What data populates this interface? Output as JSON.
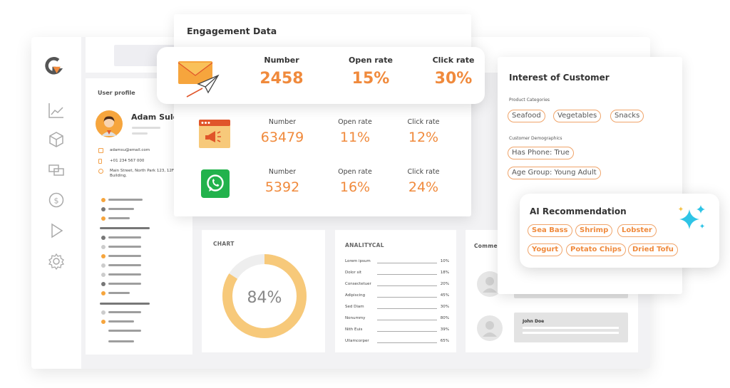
{
  "colors": {
    "accent": "#f08a3c",
    "tag_border": "#f0a46a",
    "donut": "#f7c97a",
    "whatsapp": "#22b24c"
  },
  "sidebar": {
    "icons": [
      "logo-icon",
      "chart-line-icon",
      "cube-icon",
      "screens-icon",
      "dollar-icon",
      "play-icon",
      "gear-icon"
    ]
  },
  "profile": {
    "title": "User profile",
    "name": "Adam Suley",
    "email": "adamsu@email.com",
    "phone": "+01 234 567 000",
    "address": "Main Street, North Park 123, 12F O Building."
  },
  "engagement": {
    "title": "Engagement Data",
    "rows": [
      {
        "channel": "email",
        "number_label": "Number",
        "number": "2458",
        "open_label": "Open rate",
        "open": "15%",
        "click_label": "Click rate",
        "click": "30%"
      },
      {
        "channel": "web-ads",
        "number_label": "Number",
        "number": "63479",
        "open_label": "Open rate",
        "open": "11%",
        "click_label": "Click rate",
        "click": "12%"
      },
      {
        "channel": "whatsapp",
        "number_label": "Number",
        "number": "5392",
        "open_label": "Open rate",
        "open": "16%",
        "click_label": "Click rate",
        "click": "24%"
      }
    ]
  },
  "chart_card": {
    "title": "CHART",
    "value_label": "84%",
    "percent": 84
  },
  "analytical": {
    "title": "ANALITYCAL",
    "rows": [
      {
        "label": "Lorem ipsum",
        "value": "10%"
      },
      {
        "label": "Dolor sit",
        "value": "18%"
      },
      {
        "label": "Consectetuer",
        "value": "20%"
      },
      {
        "label": "Adipiscing",
        "value": "45%"
      },
      {
        "label": "Sed Diam",
        "value": "30%"
      },
      {
        "label": "Nonummy",
        "value": "80%"
      },
      {
        "label": "Nith Euis",
        "value": "39%"
      },
      {
        "label": "Ullamcorper",
        "value": "65%"
      }
    ]
  },
  "comments": {
    "title": "Comments",
    "commenter": "John Doe"
  },
  "interest": {
    "title": "Interest of Customer",
    "product_label": "Product Categories",
    "products": [
      "Seafood",
      "Vegetables",
      "Snacks"
    ],
    "demo_label": "Customer Demographics",
    "demographics": [
      "Has Phone: True",
      "Age Group: Young Adult"
    ]
  },
  "ai": {
    "title": "AI Recommendation",
    "row1": [
      "Sea Bass",
      "Shrimp",
      "Lobster"
    ],
    "row2": [
      "Yogurt",
      "Potato Chips",
      "Dried Tofu"
    ]
  }
}
